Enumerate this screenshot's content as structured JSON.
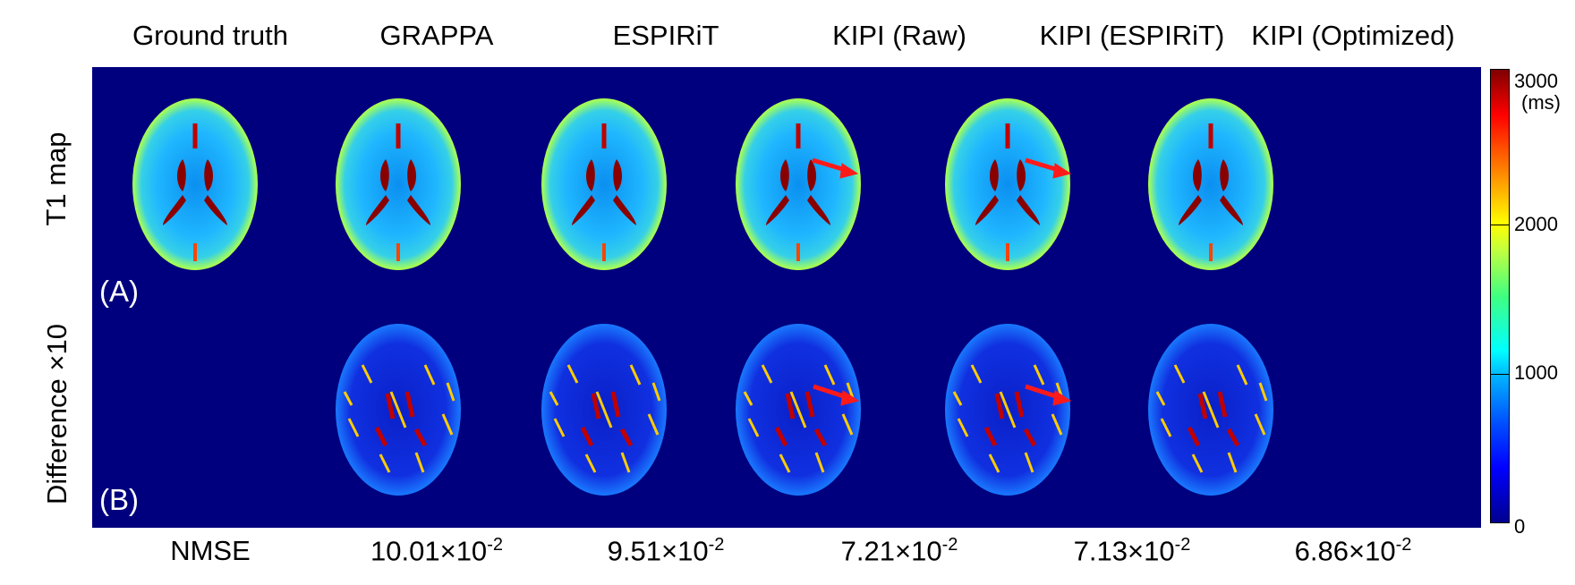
{
  "columns": [
    "Ground truth",
    "GRAPPA",
    "ESPIRiT",
    "KIPI (Raw)",
    "KIPI (ESPIRiT)",
    "KIPI (Optimized)"
  ],
  "rows": {
    "top": "T1 map",
    "bottom": "Difference ×10"
  },
  "panel_letters": {
    "top": "(A)",
    "bottom": "(B)"
  },
  "nmse_label": "NMSE",
  "nmse": [
    {
      "base": "10.01×10",
      "exp": "-2"
    },
    {
      "base": "9.51×10",
      "exp": "-2"
    },
    {
      "base": "7.21×10",
      "exp": "-2"
    },
    {
      "base": "7.13×10",
      "exp": "-2"
    },
    {
      "base": "6.86×10",
      "exp": "-2"
    }
  ],
  "colorbar": {
    "ticks": [
      "3000",
      "2000",
      "1000",
      "0"
    ],
    "unit": "(ms)",
    "colors": {
      "low": "#00008f",
      "high": "#800000"
    }
  },
  "background_color": "#00007e",
  "annotation_color": "#ff1a1a"
}
